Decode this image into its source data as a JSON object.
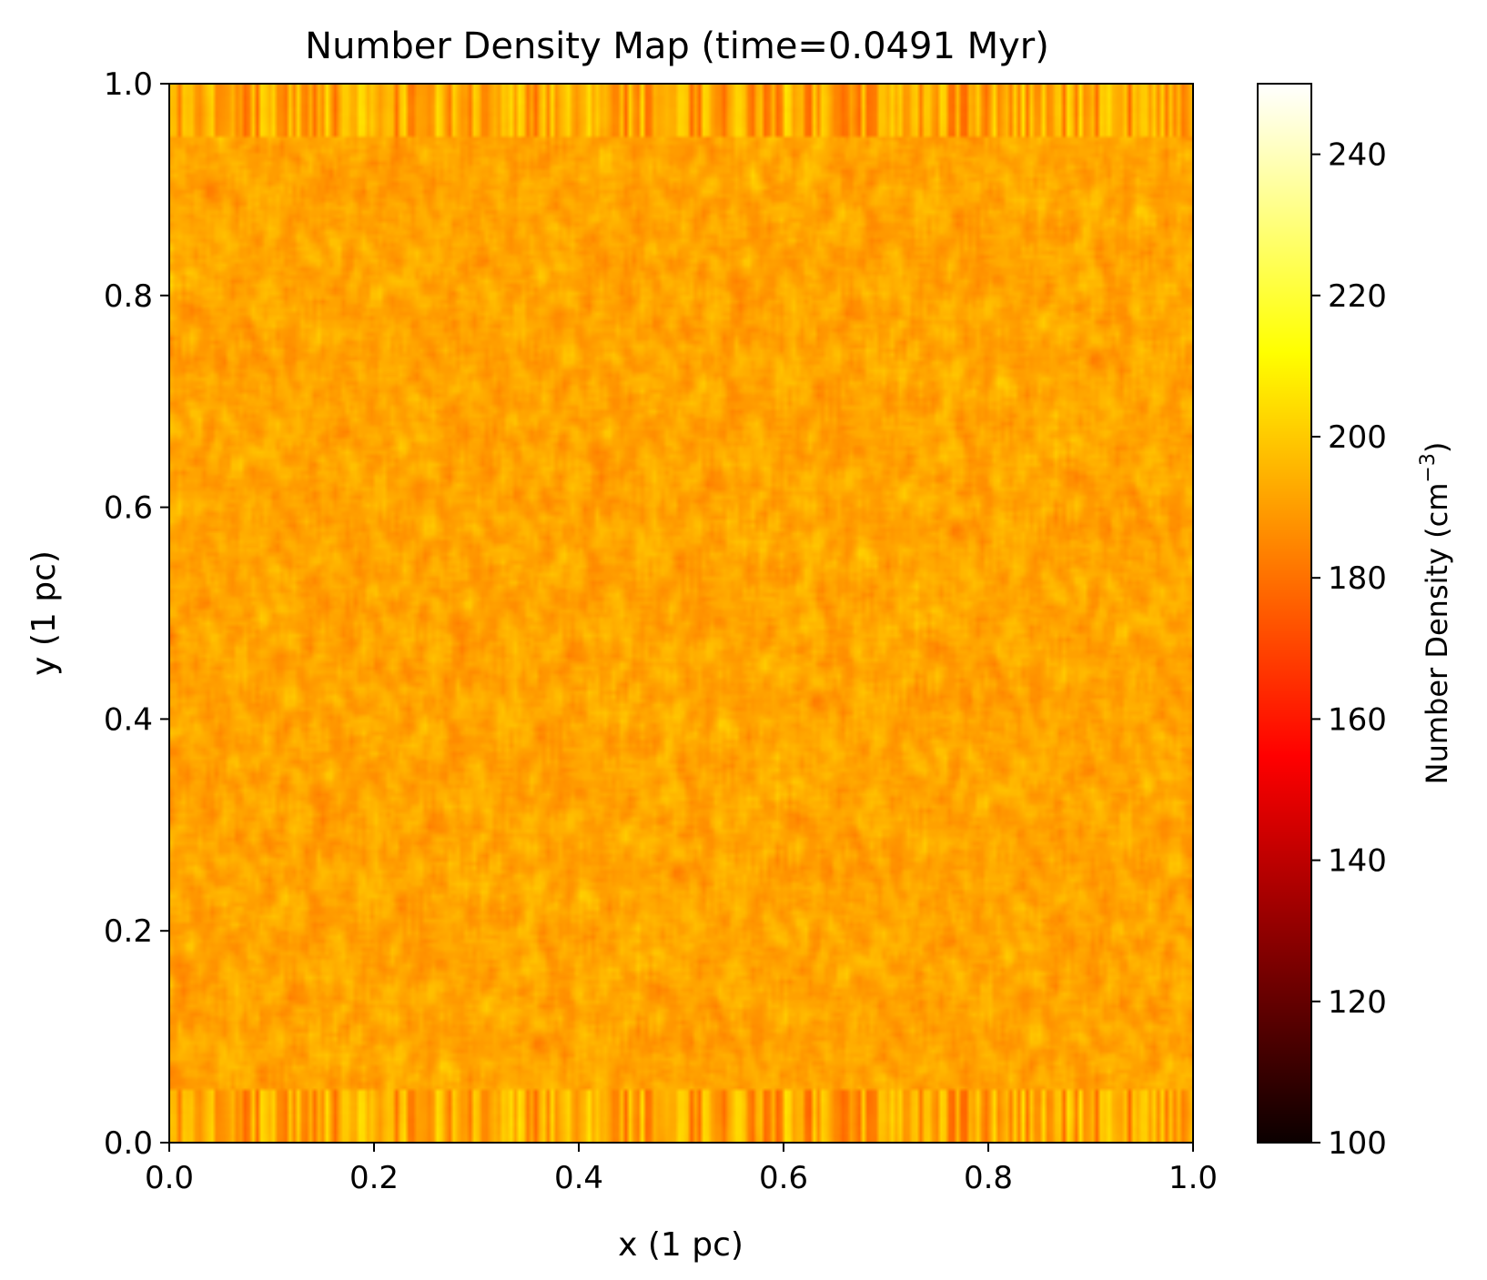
{
  "chart_data": {
    "type": "heatmap",
    "title": "Number Density Map (time=0.0491 Myr)",
    "xlabel": "x (1 pc)",
    "ylabel": "y (1 pc)",
    "xlim": [
      0.0,
      1.0
    ],
    "ylim": [
      0.0,
      1.0
    ],
    "x_ticks": [
      "0.0",
      "0.2",
      "0.4",
      "0.6",
      "0.8",
      "1.0"
    ],
    "y_ticks": [
      "0.0",
      "0.2",
      "0.4",
      "0.6",
      "0.8",
      "1.0"
    ],
    "colormap": "hot",
    "colorbar": {
      "label": "Number Density (cm",
      "label_unit_superscript": "−3",
      "label_close": ")",
      "range": [
        100,
        250
      ],
      "ticks": [
        "100",
        "120",
        "140",
        "160",
        "180",
        "200",
        "220",
        "240"
      ]
    },
    "field_summary": {
      "typical_value": 192,
      "value_spread": 8,
      "edge_band_fraction": 0.05,
      "edge_band_spread": 14
    },
    "grid": false,
    "legend": "none"
  }
}
